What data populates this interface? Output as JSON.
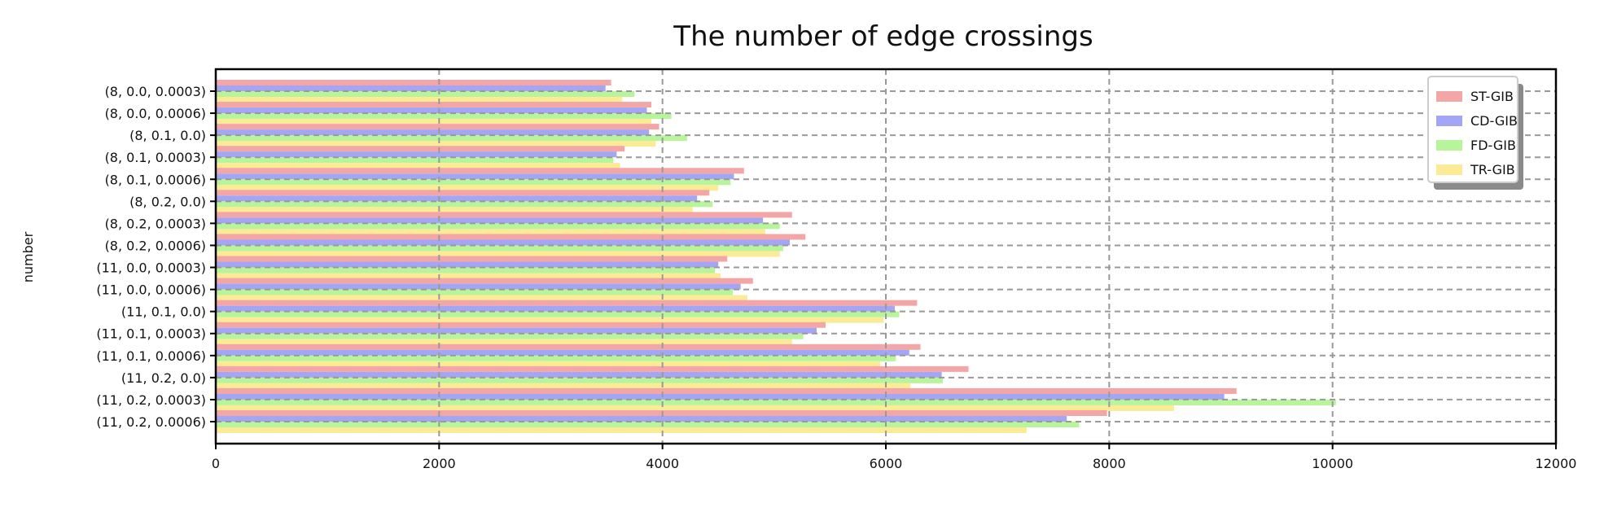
{
  "chart_data": {
    "type": "bar",
    "orientation": "horizontal",
    "title": "The number of edge crossings",
    "xlabel": "",
    "ylabel": "number",
    "xlim": [
      0,
      12000
    ],
    "xticks": [
      "0",
      "2000",
      "4000",
      "6000",
      "8000",
      "10000",
      "12000"
    ],
    "grid": true,
    "grid_style": "dashed",
    "legend_position": "top-right",
    "categories": [
      "(8, 0.0, 0.0003)",
      "(8, 0.0, 0.0006)",
      "(8, 0.1, 0.0)",
      "(8, 0.1, 0.0003)",
      "(8, 0.1, 0.0006)",
      "(8, 0.2, 0.0)",
      "(8, 0.2, 0.0003)",
      "(8, 0.2, 0.0006)",
      "(11, 0.0, 0.0003)",
      "(11, 0.0, 0.0006)",
      "(11, 0.1, 0.0)",
      "(11, 0.1, 0.0003)",
      "(11, 0.1, 0.0006)",
      "(11, 0.2, 0.0)",
      "(11, 0.2, 0.0003)",
      "(11, 0.2, 0.0006)"
    ],
    "series": [
      {
        "name": "ST-GIB",
        "color": "#f4a6a6",
        "values": [
          3540,
          3900,
          3970,
          3660,
          4730,
          4420,
          5160,
          5280,
          4580,
          4810,
          6280,
          5460,
          6310,
          6740,
          9140,
          7980
        ]
      },
      {
        "name": "CD-GIB",
        "color": "#a3a6f4",
        "values": [
          3490,
          3860,
          3880,
          3590,
          4640,
          4310,
          4900,
          5140,
          4500,
          4700,
          6080,
          5380,
          6210,
          6500,
          9030,
          7620
        ]
      },
      {
        "name": "FD-GIB",
        "color": "#b8f49a",
        "values": [
          3750,
          4080,
          4220,
          3560,
          4610,
          4450,
          5050,
          5080,
          4470,
          4630,
          6120,
          5260,
          6090,
          6510,
          10030,
          7730
        ]
      },
      {
        "name": "TR-GIB",
        "color": "#fbea96",
        "values": [
          3640,
          3900,
          3940,
          3620,
          4500,
          4270,
          4920,
          5050,
          4520,
          4760,
          5980,
          5160,
          5950,
          6220,
          8580,
          7260
        ]
      }
    ]
  }
}
